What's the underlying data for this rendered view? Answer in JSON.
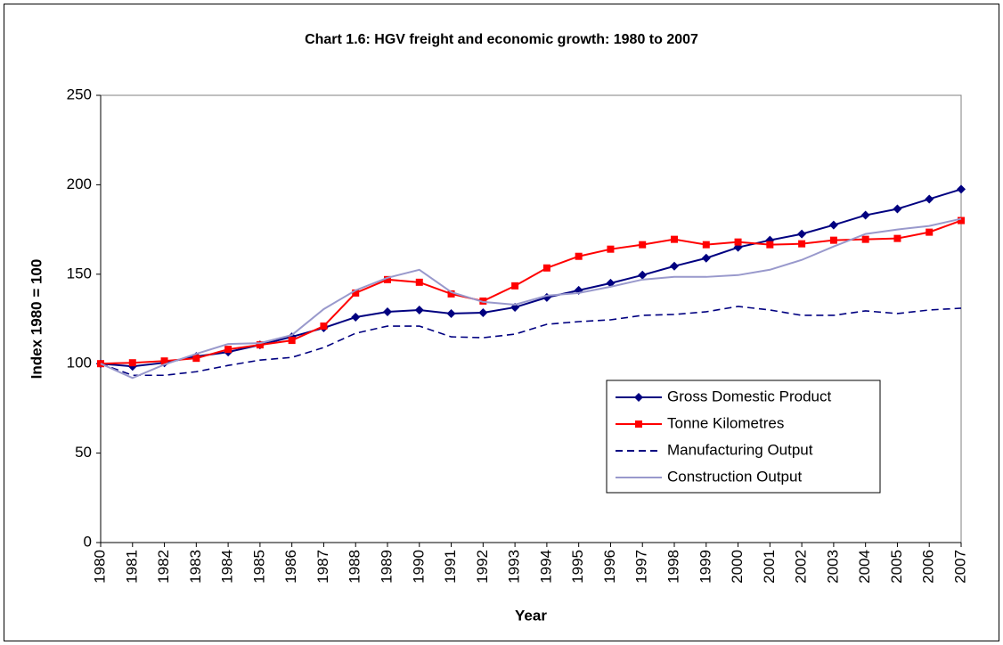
{
  "chart_data": {
    "type": "line",
    "title": "Chart 1.6: HGV freight and economic growth: 1980 to 2007",
    "x_label": "Year",
    "y_label": "Index 1980 = 100",
    "categories": [
      "1980",
      "1981",
      "1982",
      "1983",
      "1984",
      "1985",
      "1986",
      "1987",
      "1988",
      "1989",
      "1990",
      "1991",
      "1992",
      "1993",
      "1994",
      "1995",
      "1996",
      "1997",
      "1998",
      "1999",
      "2000",
      "2001",
      "2002",
      "2003",
      "2004",
      "2005",
      "2006",
      "2007"
    ],
    "series": [
      {
        "name": "Gross Domestic Product",
        "color": "#000080",
        "marker": "diamond",
        "dash": "solid",
        "values": [
          100,
          98.5,
          100.5,
          104,
          106.5,
          110.5,
          115,
          120,
          126,
          129,
          130,
          128,
          128.5,
          131.5,
          137,
          141,
          145,
          149.5,
          154.5,
          159,
          165,
          169,
          172.5,
          177.5,
          183,
          186.5,
          192,
          197.5
        ]
      },
      {
        "name": "Tonne Kilometres",
        "color": "#ff0000",
        "marker": "square",
        "dash": "solid",
        "values": [
          100,
          100.5,
          101.5,
          103,
          108,
          110.5,
          113,
          121,
          139.5,
          147,
          145.5,
          139,
          135,
          143.5,
          153.5,
          160,
          164,
          166.5,
          169.5,
          166.5,
          168,
          166.5,
          167,
          169,
          169.5,
          170,
          173.5,
          180
        ]
      },
      {
        "name": "Manufacturing Output",
        "color": "#000080",
        "marker": "none",
        "dash": "dashed",
        "values": [
          100,
          93.5,
          93.5,
          95.5,
          99,
          102,
          103.5,
          109,
          117,
          121,
          121,
          115,
          114.5,
          116.5,
          122,
          123.5,
          124.5,
          127,
          127.5,
          129,
          132,
          130,
          127,
          127,
          129.5,
          128,
          130,
          131
        ]
      },
      {
        "name": "Construction Output",
        "color": "#9999cc",
        "marker": "none",
        "dash": "solid",
        "values": [
          100,
          92,
          99.5,
          105.5,
          111,
          111.5,
          116,
          130.5,
          141,
          148,
          152.5,
          140,
          134.5,
          133,
          138,
          139.5,
          143,
          147,
          148.5,
          148.5,
          149.5,
          152.5,
          158,
          165.5,
          172.5,
          175,
          177,
          181
        ]
      }
    ],
    "ylim": [
      0,
      250
    ],
    "yticks": [
      0,
      50,
      100,
      150,
      200,
      250
    ],
    "grid": false,
    "legend": "lower-right"
  }
}
